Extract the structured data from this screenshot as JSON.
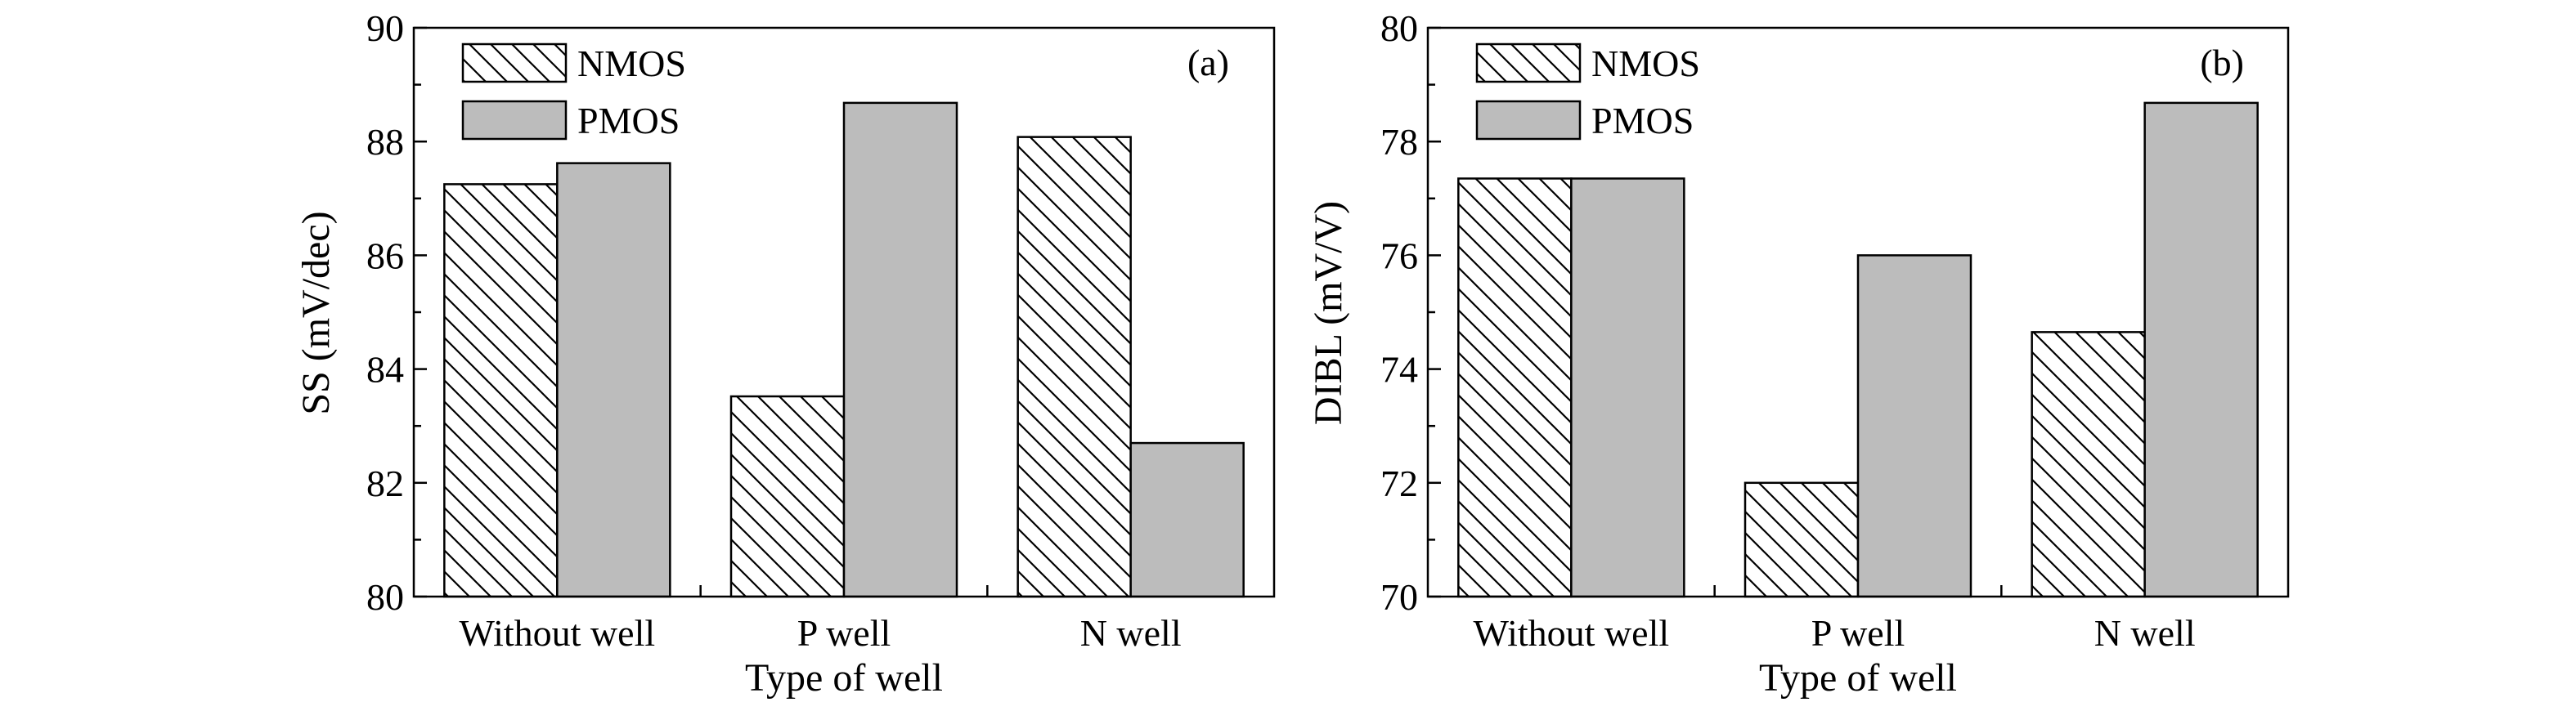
{
  "chart_data": [
    {
      "type": "bar",
      "panel_label": "(a)",
      "categories": [
        "Without well",
        "P well",
        "N well"
      ],
      "series": [
        {
          "name": "NMOS",
          "values": [
            87.25,
            83.52,
            88.08
          ],
          "pattern": "hatch",
          "color": "#ffffff"
        },
        {
          "name": "PMOS",
          "values": [
            87.62,
            88.68,
            82.7
          ],
          "pattern": "solid",
          "color": "#bcbcbc"
        }
      ],
      "xlabel": "Type of well",
      "ylabel": "SS (mV/dec)",
      "ylim": [
        80,
        90
      ],
      "yticks": [
        80,
        82,
        84,
        86,
        88,
        90
      ],
      "legend_position": "top-left",
      "grid": false
    },
    {
      "type": "bar",
      "panel_label": "(b)",
      "categories": [
        "Without well",
        "P well",
        "N well"
      ],
      "series": [
        {
          "name": "NMOS",
          "values": [
            77.35,
            72.0,
            74.65
          ],
          "pattern": "hatch",
          "color": "#ffffff"
        },
        {
          "name": "PMOS",
          "values": [
            77.35,
            76.0,
            78.68
          ],
          "pattern": "solid",
          "color": "#bcbcbc"
        }
      ],
      "xlabel": "Type of well",
      "ylabel": "DIBL (mV/V)",
      "ylim": [
        70,
        80
      ],
      "yticks": [
        70,
        72,
        74,
        76,
        78,
        80
      ],
      "legend_position": "top-left",
      "grid": false
    }
  ]
}
